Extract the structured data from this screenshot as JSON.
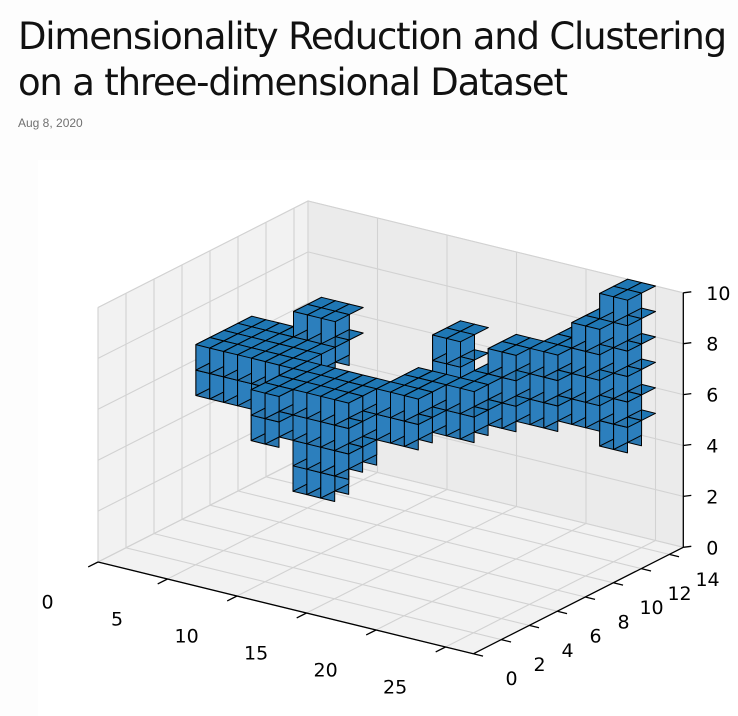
{
  "post": {
    "title": "Dimensionality Reduction and Clustering on a three-dimensional Dataset",
    "date": "Aug 8, 2020"
  },
  "chart_data": {
    "type": "voxels",
    "colors": {
      "voxel_face": "#1f77b4",
      "voxel_edge": "#000000",
      "pane": "#f2f2f2",
      "grid": "#d2d2d2"
    },
    "x_ticks": [
      0,
      5,
      10,
      15,
      20,
      25
    ],
    "y_ticks": [
      0,
      2,
      4,
      6,
      8,
      10,
      12,
      14
    ],
    "z_ticks": [
      0,
      2,
      4,
      6,
      8,
      10
    ],
    "xlim": [
      0,
      27
    ],
    "ylim": [
      0,
      15
    ],
    "zlim": [
      0,
      10
    ],
    "grid": true,
    "voxel_boxes": [
      {
        "x": [
          1,
          5
        ],
        "y": [
          6,
          10
        ],
        "z": [
          5,
          7
        ]
      },
      {
        "x": [
          5,
          8
        ],
        "y": [
          9,
          11
        ],
        "z": [
          6,
          8
        ]
      },
      {
        "x": [
          5,
          8
        ],
        "y": [
          6,
          9
        ],
        "z": [
          5,
          7
        ]
      },
      {
        "x": [
          8,
          10
        ],
        "y": [
          3,
          7
        ],
        "z": [
          5,
          7
        ]
      },
      {
        "x": [
          10,
          14
        ],
        "y": [
          4,
          7
        ],
        "z": [
          4,
          7
        ]
      },
      {
        "x": [
          10,
          13
        ],
        "y": [
          4,
          6
        ],
        "z": [
          3,
          4
        ]
      },
      {
        "x": [
          14,
          17
        ],
        "y": [
          6,
          9
        ],
        "z": [
          5,
          7
        ]
      },
      {
        "x": [
          14,
          16
        ],
        "y": [
          10,
          12
        ],
        "z": [
          6,
          8
        ]
      },
      {
        "x": [
          17,
          19
        ],
        "y": [
          8,
          11
        ],
        "z": [
          5,
          7
        ]
      },
      {
        "x": [
          18,
          20
        ],
        "y": [
          10,
          12
        ],
        "z": [
          5,
          8
        ]
      },
      {
        "x": [
          20,
          22
        ],
        "y": [
          11,
          14
        ],
        "z": [
          5,
          8
        ]
      },
      {
        "x": [
          22,
          24
        ],
        "y": [
          12,
          14
        ],
        "z": [
          5,
          9
        ]
      },
      {
        "x": [
          23,
          25
        ],
        "y": [
          13,
          15
        ],
        "z": [
          4,
          10
        ]
      }
    ]
  }
}
